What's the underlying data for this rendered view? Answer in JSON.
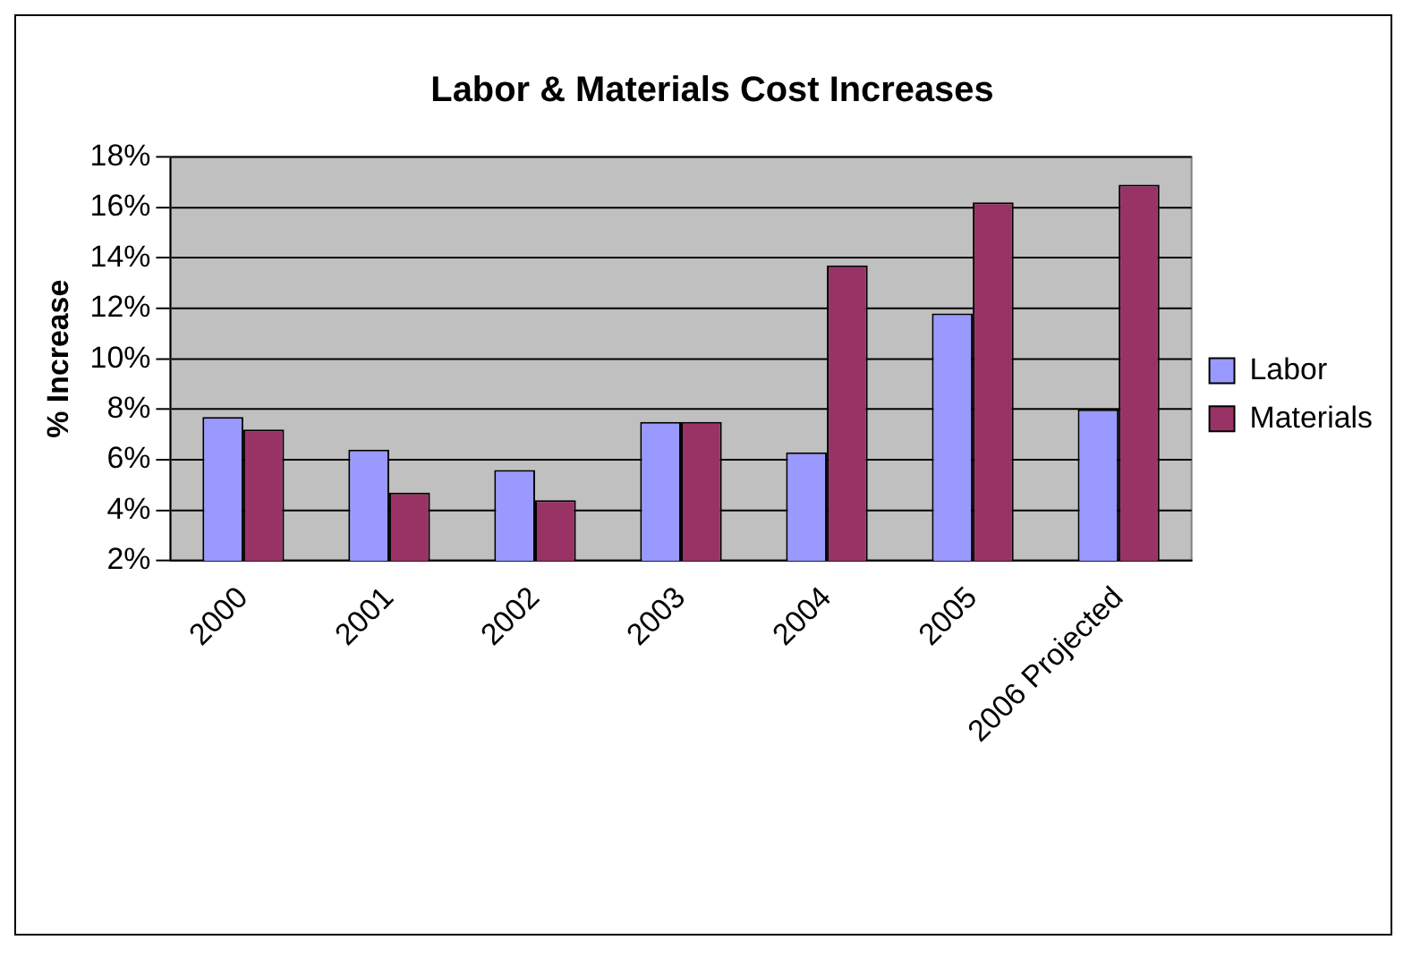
{
  "chart_data": {
    "type": "bar",
    "title": "Labor & Materials Cost Increases",
    "ylabel": "% Increase",
    "categories": [
      "2000",
      "2001",
      "2002",
      "2003",
      "2004",
      "2005",
      "2006 Projected"
    ],
    "series": [
      {
        "name": "Labor",
        "color": "#9999ff",
        "values": [
          7.7,
          6.4,
          5.6,
          7.5,
          6.3,
          11.8,
          8.0
        ]
      },
      {
        "name": "Materials",
        "color": "#993366",
        "values": [
          7.2,
          4.7,
          4.4,
          7.5,
          13.7,
          16.2,
          16.9
        ]
      }
    ],
    "ylim": [
      2,
      18
    ],
    "yticks": [
      {
        "value": 2,
        "label": "2%"
      },
      {
        "value": 4,
        "label": "4%"
      },
      {
        "value": 6,
        "label": "6%"
      },
      {
        "value": 8,
        "label": "8%"
      },
      {
        "value": 10,
        "label": "10%"
      },
      {
        "value": 12,
        "label": "12%"
      },
      {
        "value": 14,
        "label": "14%"
      },
      {
        "value": 16,
        "label": "16%"
      },
      {
        "value": 18,
        "label": "18%"
      }
    ],
    "grid": "y",
    "legend": "right"
  }
}
